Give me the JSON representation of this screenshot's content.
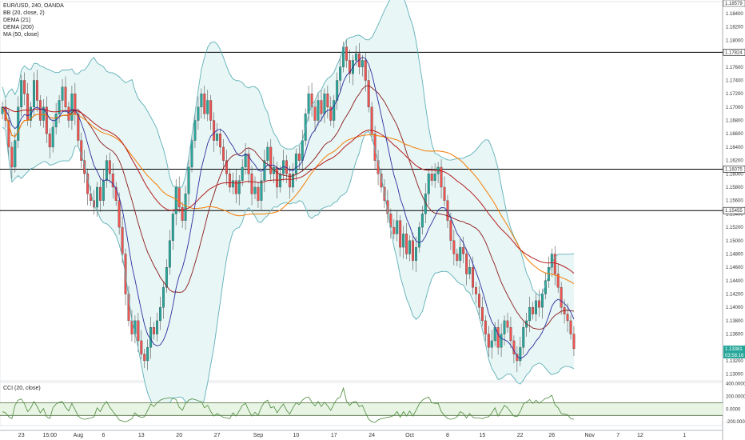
{
  "legend": {
    "symbol": "EUR/USD, 240, OANDA",
    "studies": [
      "BB (20, close, 2)",
      "DEMA (21)",
      "DEMA (200)",
      "MA (50, close)"
    ]
  },
  "cci_legend": "CCI (20, close)",
  "colors": {
    "up": "#26a69a",
    "down": "#ef5350",
    "bb": "#5fb0b7",
    "bb_fill": "#e8f6f6",
    "dema21": "#2b2f9e",
    "dema200": "#b71c1c",
    "ma50": "#f57c00",
    "basis": "#8b1a1a",
    "cci": "#4a8a3a",
    "cci_band": "#e8f4e4",
    "hline": "#000000"
  },
  "chart_data": [
    {
      "type": "candlestick",
      "title": "EUR/USD, 240, OANDA",
      "ylim": [
        1.129,
        1.1858
      ],
      "y_ticks": [
        "1.18400",
        "1.18200",
        "1.18000",
        "1.17800",
        "1.17600",
        "1.17400",
        "1.17200",
        "1.17000",
        "1.16800",
        "1.16600",
        "1.16400",
        "1.16200",
        "1.16000",
        "1.15800",
        "1.15600",
        "1.15400",
        "1.15200",
        "1.15000",
        "1.14800",
        "1.14600",
        "1.14400",
        "1.14200",
        "1.14000",
        "1.13800",
        "1.13600",
        "1.13400",
        "1.13200",
        "1.13000"
      ],
      "y_tick_values": [
        1.184,
        1.182,
        1.18,
        1.178,
        1.176,
        1.174,
        1.172,
        1.17,
        1.168,
        1.166,
        1.164,
        1.162,
        1.16,
        1.158,
        1.156,
        1.154,
        1.152,
        1.15,
        1.148,
        1.146,
        1.144,
        1.142,
        1.14,
        1.138,
        1.136,
        1.134,
        1.132,
        1.13
      ],
      "x_ticks": [
        "23",
        "15:00",
        "Aug",
        "6",
        "13",
        "20",
        "27",
        "Sep",
        "10",
        "17",
        "24",
        "Oct",
        "8",
        "15",
        "22",
        "26",
        "Nov",
        "7",
        "12",
        "1"
      ],
      "x_tick_index": [
        6,
        15,
        24,
        32,
        44,
        56,
        68,
        81,
        93,
        105,
        117,
        129,
        141,
        152,
        164,
        174,
        186,
        195,
        202,
        216
      ],
      "top_price_label": "1.18579",
      "horizontal_levels": [
        {
          "value": 1.1782,
          "label": "1.17824"
        },
        {
          "value": 1.1607,
          "label": "1.16075"
        },
        {
          "value": 1.1545,
          "label": "1.15455"
        }
      ],
      "current_price": {
        "value": 1.1338,
        "label": "1.13381",
        "countdown": "03:58:16"
      },
      "closes": [
        1.17,
        1.168,
        1.164,
        1.161,
        1.165,
        1.17,
        1.174,
        1.172,
        1.168,
        1.17,
        1.174,
        1.171,
        1.168,
        1.17,
        1.166,
        1.164,
        1.167,
        1.169,
        1.171,
        1.173,
        1.17,
        1.168,
        1.172,
        1.169,
        1.165,
        1.162,
        1.16,
        1.157,
        1.156,
        1.155,
        1.158,
        1.156,
        1.159,
        1.162,
        1.16,
        1.158,
        1.156,
        1.152,
        1.148,
        1.142,
        1.138,
        1.136,
        1.138,
        1.135,
        1.133,
        1.132,
        1.134,
        1.137,
        1.136,
        1.138,
        1.14,
        1.143,
        1.146,
        1.15,
        1.154,
        1.158,
        1.155,
        1.153,
        1.157,
        1.161,
        1.165,
        1.168,
        1.17,
        1.172,
        1.169,
        1.171,
        1.168,
        1.165,
        1.166,
        1.164,
        1.162,
        1.16,
        1.158,
        1.159,
        1.157,
        1.159,
        1.161,
        1.163,
        1.16,
        1.157,
        1.158,
        1.156,
        1.159,
        1.162,
        1.164,
        1.16,
        1.161,
        1.158,
        1.16,
        1.162,
        1.16,
        1.158,
        1.16,
        1.163,
        1.162,
        1.165,
        1.169,
        1.172,
        1.17,
        1.168,
        1.171,
        1.169,
        1.172,
        1.17,
        1.168,
        1.171,
        1.174,
        1.176,
        1.179,
        1.177,
        1.175,
        1.177,
        1.178,
        1.176,
        1.177,
        1.174,
        1.17,
        1.166,
        1.162,
        1.16,
        1.158,
        1.156,
        1.154,
        1.152,
        1.151,
        1.153,
        1.149,
        1.151,
        1.148,
        1.15,
        1.147,
        1.149,
        1.152,
        1.154,
        1.157,
        1.16,
        1.159,
        1.16,
        1.161,
        1.158,
        1.156,
        1.153,
        1.15,
        1.148,
        1.147,
        1.149,
        1.148,
        1.145,
        1.146,
        1.143,
        1.142,
        1.14,
        1.138,
        1.136,
        1.134,
        1.135,
        1.137,
        1.134,
        1.136,
        1.138,
        1.137,
        1.135,
        1.133,
        1.132,
        1.134,
        1.137,
        1.138,
        1.14,
        1.139,
        1.141,
        1.14,
        1.142,
        1.144,
        1.146,
        1.148,
        1.145,
        1.143,
        1.14,
        1.139,
        1.138,
        1.136,
        1.1338
      ],
      "cci": {
        "ylim": [
          -260,
          420
        ],
        "y_ticks": [
          "400.0000",
          "200.0000",
          "0.0000",
          "-200.0000"
        ],
        "y_tick_values": [
          400,
          200,
          0,
          -200
        ],
        "band": [
          -100,
          100
        ],
        "values": [
          -40,
          -60,
          -120,
          -150,
          60,
          140,
          160,
          80,
          -40,
          20,
          120,
          40,
          -60,
          10,
          -120,
          -150,
          20,
          80,
          110,
          120,
          30,
          -30,
          90,
          -10,
          -110,
          -150,
          -160,
          -150,
          -140,
          -120,
          20,
          -40,
          60,
          120,
          30,
          -40,
          -100,
          -170,
          -190,
          -200,
          -180,
          -150,
          -60,
          -110,
          -130,
          -120,
          -20,
          80,
          40,
          100,
          140,
          160,
          170,
          180,
          170,
          150,
          30,
          -20,
          90,
          140,
          160,
          150,
          130,
          120,
          20,
          60,
          -40,
          -110,
          -70,
          -100,
          -130,
          -140,
          -150,
          -60,
          -110,
          -30,
          60,
          90,
          -20,
          -110,
          -50,
          -100,
          30,
          110,
          140,
          20,
          40,
          -60,
          20,
          80,
          -20,
          -80,
          20,
          100,
          70,
          140,
          180,
          190,
          110,
          50,
          120,
          40,
          110,
          50,
          -20,
          80,
          160,
          190,
          330,
          120,
          60,
          110,
          120,
          40,
          60,
          -60,
          -160,
          -200,
          -210,
          -170,
          -150,
          -140,
          -130,
          -120,
          -100,
          -40,
          -130,
          -40,
          -110,
          -30,
          -110,
          -20,
          80,
          140,
          170,
          190,
          100,
          90,
          90,
          -40,
          -100,
          -150,
          -160,
          -150,
          -120,
          -40,
          -70,
          -140,
          -70,
          -130,
          -140,
          -140,
          -150,
          -130,
          -120,
          -60,
          20,
          -110,
          -30,
          60,
          20,
          -50,
          -110,
          -120,
          -40,
          80,
          110,
          150,
          90,
          140,
          90,
          130,
          170,
          180,
          220,
          70,
          20,
          -70,
          -80,
          -90,
          -150,
          -160
        ]
      }
    }
  ]
}
